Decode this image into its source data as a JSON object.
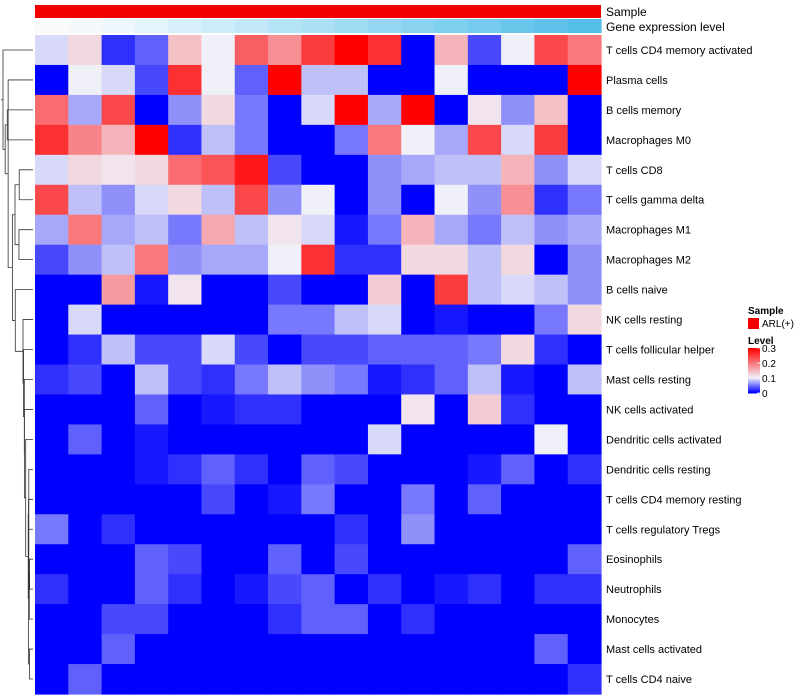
{
  "chart_data": {
    "type": "heatmap",
    "annotation_tracks": [
      {
        "label": "Sample",
        "color": "#f20000"
      },
      {
        "label": "Gene expression level",
        "colors": [
          "#fafafa",
          "#f5f9fc",
          "#edf7fc",
          "#e3f4fb",
          "#d8f0fa",
          "#cdecf9",
          "#c2e8f8",
          "#b6e4f7",
          "#abe0f5",
          "#a0dcf4",
          "#95d7f2",
          "#8ad3f0",
          "#7fcfef",
          "#74cbee",
          "#69c7ec",
          "#5ec2ea",
          "#54bee8"
        ]
      }
    ],
    "row_labels": [
      "T cells CD4 memory activated",
      "Plasma cells",
      "B cells memory",
      "Macrophages M0",
      "T cells CD8",
      "T cells gamma delta",
      "Macrophages M1",
      "Macrophages M2",
      "B cells naive",
      "NK cells resting",
      "T cells follicular helper",
      "Mast cells resting",
      "NK cells activated",
      "Dendritic cells activated",
      "Dendritic cells resting",
      "T cells CD4 memory resting",
      "T cells regulatory  Tregs",
      "Eosinophils",
      "Neutrophils",
      "Monocytes",
      "Mast cells activated",
      "T cells CD4 naive"
    ],
    "values": [
      [
        0.09,
        0.12,
        0.02,
        0.04,
        0.14,
        0.1,
        0.22,
        0.18,
        0.25,
        0.3,
        0.26,
        0.0,
        0.15,
        0.03,
        0.1,
        0.24,
        0.2
      ],
      [
        0.0,
        0.1,
        0.09,
        0.03,
        0.26,
        0.1,
        0.04,
        0.3,
        0.08,
        0.08,
        0.0,
        0.0,
        0.1,
        0.0,
        0.0,
        0.0,
        0.3
      ],
      [
        0.21,
        0.07,
        0.24,
        0.0,
        0.06,
        0.12,
        0.05,
        0.0,
        0.09,
        0.3,
        0.07,
        0.3,
        0.0,
        0.11,
        0.06,
        0.14,
        0.0
      ],
      [
        0.26,
        0.19,
        0.15,
        0.3,
        0.02,
        0.08,
        0.05,
        0.0,
        0.0,
        0.05,
        0.2,
        0.1,
        0.07,
        0.24,
        0.09,
        0.25,
        0.0
      ],
      [
        0.09,
        0.12,
        0.11,
        0.12,
        0.21,
        0.23,
        0.28,
        0.03,
        0.0,
        0.0,
        0.06,
        0.07,
        0.08,
        0.08,
        0.15,
        0.06,
        0.09
      ],
      [
        0.24,
        0.08,
        0.06,
        0.09,
        0.12,
        0.08,
        0.24,
        0.06,
        0.1,
        0.0,
        0.06,
        0.0,
        0.1,
        0.06,
        0.18,
        0.02,
        0.05
      ],
      [
        0.07,
        0.2,
        0.07,
        0.08,
        0.05,
        0.16,
        0.08,
        0.11,
        0.09,
        0.01,
        0.05,
        0.15,
        0.07,
        0.05,
        0.08,
        0.06,
        0.07
      ],
      [
        0.03,
        0.06,
        0.08,
        0.2,
        0.06,
        0.07,
        0.07,
        0.1,
        0.26,
        0.02,
        0.02,
        0.12,
        0.12,
        0.08,
        0.12,
        0.0,
        0.06
      ],
      [
        0.0,
        0.0,
        0.17,
        0.01,
        0.11,
        0.0,
        0.0,
        0.03,
        0.0,
        0.0,
        0.13,
        0.0,
        0.25,
        0.08,
        0.09,
        0.08,
        0.06
      ],
      [
        0.0,
        0.09,
        0.0,
        0.0,
        0.0,
        0.0,
        0.0,
        0.05,
        0.05,
        0.08,
        0.09,
        0.0,
        0.01,
        0.0,
        0.0,
        0.05,
        0.12
      ],
      [
        0.0,
        0.02,
        0.08,
        0.03,
        0.03,
        0.09,
        0.03,
        0.0,
        0.03,
        0.03,
        0.04,
        0.04,
        0.04,
        0.05,
        0.12,
        0.02,
        0.0
      ],
      [
        0.02,
        0.03,
        0.0,
        0.08,
        0.03,
        0.02,
        0.05,
        0.08,
        0.06,
        0.05,
        0.01,
        0.02,
        0.04,
        0.08,
        0.01,
        0.0,
        0.08
      ],
      [
        0.0,
        0.0,
        0.0,
        0.04,
        0.0,
        0.01,
        0.02,
        0.02,
        0.0,
        0.0,
        0.0,
        0.11,
        0.0,
        0.13,
        0.02,
        0.0,
        0.0
      ],
      [
        0.0,
        0.04,
        0.0,
        0.01,
        0.0,
        0.0,
        0.0,
        0.0,
        0.0,
        0.0,
        0.09,
        0.0,
        0.0,
        0.0,
        0.0,
        0.1,
        0.0
      ],
      [
        0.0,
        0.0,
        0.0,
        0.01,
        0.02,
        0.04,
        0.02,
        0.0,
        0.04,
        0.03,
        0.0,
        0.0,
        0.0,
        0.01,
        0.04,
        0.0,
        0.02
      ],
      [
        0.0,
        0.0,
        0.0,
        0.0,
        0.0,
        0.03,
        0.0,
        0.01,
        0.05,
        0.0,
        0.0,
        0.05,
        0.0,
        0.04,
        0.0,
        0.0,
        0.0
      ],
      [
        0.05,
        0.0,
        0.02,
        0.0,
        0.0,
        0.0,
        0.0,
        0.0,
        0.0,
        0.02,
        0.0,
        0.06,
        0.0,
        0.0,
        0.0,
        0.0,
        0.0
      ],
      [
        0.0,
        0.0,
        0.0,
        0.04,
        0.03,
        0.0,
        0.0,
        0.04,
        0.0,
        0.03,
        0.0,
        0.0,
        0.0,
        0.0,
        0.0,
        0.0,
        0.04
      ],
      [
        0.02,
        0.0,
        0.0,
        0.04,
        0.02,
        0.0,
        0.01,
        0.03,
        0.04,
        0.0,
        0.02,
        0.0,
        0.01,
        0.02,
        0.0,
        0.02,
        0.02
      ],
      [
        0.0,
        0.0,
        0.03,
        0.03,
        0.0,
        0.0,
        0.0,
        0.02,
        0.04,
        0.04,
        0.0,
        0.02,
        0.0,
        0.0,
        0.0,
        0.0,
        0.0
      ],
      [
        0.0,
        0.0,
        0.04,
        0.0,
        0.0,
        0.0,
        0.0,
        0.0,
        0.0,
        0.0,
        0.0,
        0.0,
        0.0,
        0.0,
        0.0,
        0.04,
        0.0
      ],
      [
        0.0,
        0.04,
        0.0,
        0.0,
        0.0,
        0.0,
        0.0,
        0.0,
        0.0,
        0.0,
        0.0,
        0.0,
        0.0,
        0.0,
        0.0,
        0.0,
        0.02
      ]
    ],
    "color_scale": {
      "min": 0,
      "mid": 0.1,
      "max": 0.3,
      "low": "#0000ff",
      "middle": "#f0f0f8",
      "high": "#ff0000"
    },
    "legend": {
      "position": "right",
      "sample_title": "Sample",
      "sample_entry": "ARL(+)",
      "sample_color": "#f20000",
      "level_title": "Level",
      "level_ticks": [
        "0.3",
        "0.2",
        "0.1",
        "0"
      ],
      "level_tick_values": [
        0.3,
        0.2,
        0.1,
        0
      ]
    }
  }
}
